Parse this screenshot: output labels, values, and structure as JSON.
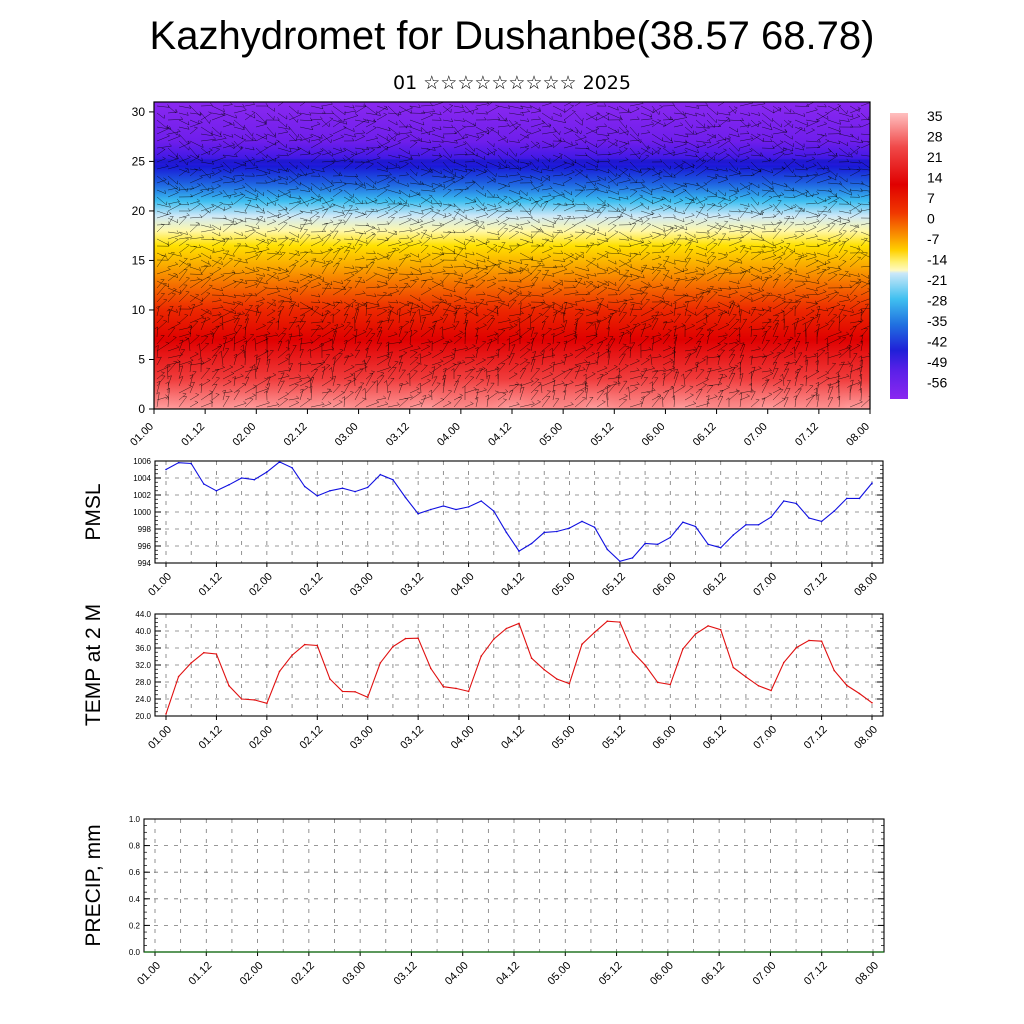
{
  "header": {
    "title": "Kazhydromet for Dushanbe(38.57 68.78)",
    "subtitle": "01 ☆☆☆☆☆☆☆☆☆ 2025"
  },
  "colors": {
    "pmsl_line": "#1010e0",
    "temp_line": "#e01010",
    "grid": "#555555"
  },
  "chart_data": [
    {
      "type": "heatmap",
      "title": "",
      "xlabel": "",
      "ylabel": "",
      "x_ticks": [
        "01.00",
        "01.12",
        "02.00",
        "02.12",
        "03.00",
        "03.12",
        "04.00",
        "04.12",
        "05.00",
        "05.12",
        "06.00",
        "06.12",
        "07.00",
        "07.12",
        "08.00"
      ],
      "y_ticks": [
        "0",
        "5",
        "10",
        "15",
        "20",
        "25",
        "30"
      ],
      "ylim": [
        0,
        31
      ],
      "colorbar_labels": [
        "35",
        "28",
        "21",
        "14",
        "7",
        "0",
        "-7",
        "-14",
        "-21",
        "-28",
        "-35",
        "-42",
        "-49",
        "-56"
      ],
      "colorscale": [
        "#ffc0c0",
        "#f04040",
        "#e00000",
        "#f03000",
        "#f07000",
        "#f8a800",
        "#ffe000",
        "#fff9a0",
        "#d0ecf8",
        "#40c0f0",
        "#2060e0",
        "#2020d0",
        "#6a20e8",
        "#8a28f0"
      ],
      "overlay": "wind barbs"
    },
    {
      "type": "line",
      "ylabel": "PMSL",
      "ylim": [
        994,
        1006
      ],
      "y_ticks": [
        "994",
        "996",
        "998",
        "1000",
        "1002",
        "1004",
        "1006"
      ],
      "x_ticks": [
        "01.00",
        "01.12",
        "02.00",
        "02.12",
        "03.00",
        "03.12",
        "04.00",
        "04.12",
        "05.00",
        "05.12",
        "06.00",
        "06.12",
        "07.00",
        "07.12",
        "08.00"
      ],
      "series": [
        {
          "values": [
            1005.0,
            1005.8,
            1005.7,
            1003.3,
            1002.5,
            1003.2,
            1004.0,
            1003.8,
            1004.7,
            1005.9,
            1005.2,
            1003.0,
            1001.9,
            1002.5,
            1002.8,
            1002.4,
            1002.9,
            1004.4,
            1003.8,
            1001.7,
            999.8,
            1000.3,
            1000.7,
            1000.3,
            1000.6,
            1001.3,
            1000.1,
            997.6,
            995.4,
            996.3,
            997.6,
            997.7,
            998.1,
            998.9,
            998.2,
            995.6,
            994.2,
            994.6,
            996.3,
            996.2,
            997.0,
            998.8,
            998.3,
            996.2,
            995.8,
            997.3,
            998.5,
            998.5,
            999.4,
            1001.3,
            1001.0,
            999.3,
            998.9,
            1000.1,
            1001.6,
            1001.6,
            1003.4
          ]
        }
      ]
    },
    {
      "type": "line",
      "ylabel": "TEMP at 2 M",
      "ylim": [
        20,
        44
      ],
      "y_ticks": [
        "20.0",
        "24.0",
        "28.0",
        "32.0",
        "36.0",
        "40.0",
        "44.0"
      ],
      "x_ticks": [
        "01.00",
        "01.12",
        "02.00",
        "02.12",
        "03.00",
        "03.12",
        "04.00",
        "04.12",
        "05.00",
        "05.12",
        "06.00",
        "06.12",
        "07.00",
        "07.12",
        "08.00"
      ],
      "series": [
        {
          "values": [
            20.5,
            29.3,
            32.5,
            34.9,
            34.6,
            27.1,
            24.0,
            23.8,
            23.0,
            30.5,
            34.3,
            36.8,
            36.6,
            28.7,
            25.8,
            25.7,
            24.4,
            32.5,
            36.3,
            38.2,
            38.3,
            31.2,
            26.9,
            26.5,
            25.8,
            34.1,
            38.1,
            40.6,
            41.8,
            33.6,
            30.9,
            28.7,
            27.6,
            36.9,
            39.7,
            42.3,
            42.1,
            35.1,
            32.0,
            27.9,
            27.4,
            35.8,
            39.3,
            41.2,
            40.3,
            31.4,
            29.2,
            27.1,
            26.0,
            32.6,
            36.1,
            37.8,
            37.6,
            30.7,
            27.2,
            25.3,
            23.1
          ]
        }
      ]
    },
    {
      "type": "bar",
      "ylabel": "PRECIP, mm",
      "ylim": [
        0,
        1
      ],
      "y_ticks": [
        "0.0",
        "0.2",
        "0.4",
        "0.6",
        "0.8",
        "1.0"
      ],
      "x_ticks": [
        "01.00",
        "01.12",
        "02.00",
        "02.12",
        "03.00",
        "03.12",
        "04.00",
        "04.12",
        "05.00",
        "05.12",
        "06.00",
        "06.12",
        "07.00",
        "07.12",
        "08.00"
      ],
      "series": [
        {
          "values": []
        }
      ]
    }
  ]
}
